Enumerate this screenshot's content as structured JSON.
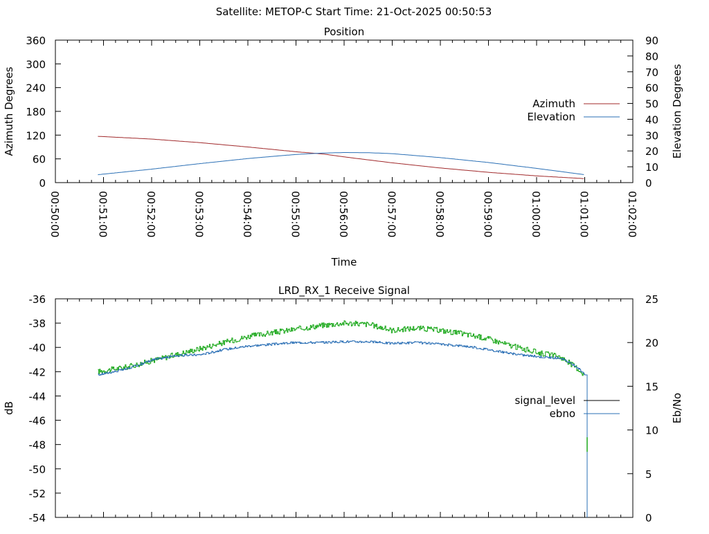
{
  "header": {
    "title": "Satellite: METOP-C    Start Time: 21-Oct-2025 00:50:53"
  },
  "colors": {
    "azimuth": "#a0282a",
    "elevation": "#2a6fb5",
    "signal_level": "#000000",
    "ebno_line": "#2a6fb5",
    "green_trace": "#1ba81b",
    "axis": "#000000",
    "background": "#ffffff"
  },
  "chart_data": [
    {
      "type": "line",
      "title": "Position",
      "xlabel": "Time",
      "ylabel": "Azimuth Degrees",
      "y2label": "Elevation Degrees",
      "xlim": [
        "00:50:00",
        "01:02:00"
      ],
      "xtick_labels": [
        "00:50:00",
        "00:51:00",
        "00:52:00",
        "00:53:00",
        "00:54:00",
        "00:55:00",
        "00:56:00",
        "00:57:00",
        "00:58:00",
        "00:59:00",
        "01:00:00",
        "01:01:00",
        "01:02:00"
      ],
      "ylim": [
        0,
        360
      ],
      "y2lim": [
        0,
        90
      ],
      "ytick_labels": [
        "0",
        "60",
        "120",
        "180",
        "240",
        "300",
        "360"
      ],
      "y2tick_labels": [
        "0",
        "10",
        "20",
        "30",
        "40",
        "50",
        "60",
        "70",
        "80",
        "90"
      ],
      "legend_position": "right",
      "series": [
        {
          "name": "Azimuth",
          "axis": "left",
          "x": [
            "00:50:53",
            "00:52:00",
            "00:53:00",
            "00:54:00",
            "00:55:00",
            "00:55:35",
            "00:56:00",
            "00:57:00",
            "00:58:00",
            "00:59:00",
            "01:00:00",
            "01:01:00"
          ],
          "y": [
            117,
            110,
            101,
            90,
            78,
            72,
            65,
            50,
            37,
            26,
            17,
            10
          ]
        },
        {
          "name": "Elevation",
          "axis": "right",
          "x": [
            "00:50:53",
            "00:52:00",
            "00:53:00",
            "00:54:00",
            "00:55:00",
            "00:55:30",
            "00:56:00",
            "00:56:30",
            "00:57:00",
            "00:58:00",
            "00:59:00",
            "01:00:00",
            "01:01:00"
          ],
          "y": [
            5,
            8.5,
            12,
            15.2,
            17.8,
            18.6,
            19,
            18.9,
            18.3,
            15.8,
            12.7,
            9,
            5
          ]
        }
      ]
    },
    {
      "type": "line",
      "title": "LRD_RX_1 Receive Signal",
      "xlabel": "",
      "ylabel": "dB",
      "y2label": "Eb/No",
      "xlim": [
        "00:50:00",
        "01:02:00"
      ],
      "ylim": [
        -54,
        -36
      ],
      "y2lim": [
        0,
        25
      ],
      "ytick_labels": [
        "-54",
        "-52",
        "-50",
        "-48",
        "-46",
        "-44",
        "-42",
        "-40",
        "-38",
        "-36"
      ],
      "y2tick_labels": [
        "0",
        "5",
        "10",
        "15",
        "20",
        "25"
      ],
      "legend_position": "right",
      "series": [
        {
          "name": "signal_level",
          "axis": "left",
          "x": [
            "00:50:53",
            "00:51:30",
            "00:52:00",
            "00:52:30",
            "00:53:00",
            "00:53:30",
            "00:54:00",
            "00:54:30",
            "00:55:00",
            "00:55:30",
            "00:56:00",
            "00:56:30",
            "00:57:00",
            "00:57:30",
            "00:58:00",
            "00:58:30",
            "00:59:00",
            "00:59:30",
            "01:00:00",
            "01:00:30",
            "01:00:50",
            "01:01:00",
            "01:01:03"
          ],
          "y": [
            -42.0,
            -41.6,
            -41.1,
            -40.6,
            -40.1,
            -39.6,
            -39.1,
            -38.8,
            -38.5,
            -38.2,
            -38.0,
            -38.1,
            -38.6,
            -38.4,
            -38.6,
            -38.9,
            -39.3,
            -39.9,
            -40.4,
            -40.8,
            -41.7,
            -42.3,
            -54.0
          ],
          "note_green": "-47.4"
        },
        {
          "name": "ebno",
          "axis": "right",
          "x": [
            "00:50:53",
            "00:51:30",
            "00:52:00",
            "00:52:30",
            "00:53:00",
            "00:53:30",
            "00:54:00",
            "00:54:30",
            "00:55:00",
            "00:55:30",
            "00:56:00",
            "00:56:30",
            "00:57:00",
            "00:57:30",
            "00:58:00",
            "00:58:30",
            "00:59:00",
            "00:59:30",
            "01:00:00",
            "01:00:30",
            "01:00:50",
            "01:01:00",
            "01:01:03"
          ],
          "y": [
            16.3,
            17.0,
            18.0,
            18.5,
            18.6,
            19.2,
            19.6,
            19.8,
            20.0,
            20.0,
            20.1,
            20.1,
            19.9,
            20.0,
            19.8,
            19.6,
            19.2,
            18.7,
            18.4,
            18.2,
            17.2,
            16.4,
            0
          ]
        }
      ]
    }
  ]
}
